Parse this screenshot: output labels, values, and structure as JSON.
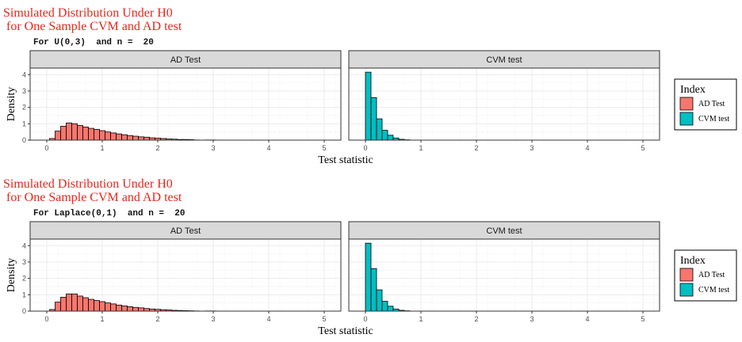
{
  "colors": {
    "ad": "#F8766D",
    "cvm": "#00BFC4",
    "strip": "#d9d9d9",
    "grid": "#ebebeb",
    "title": "#e8261c"
  },
  "chart_data": [
    {
      "type": "bar",
      "title": "Simulated Distribution Under H0",
      "title_line2": " for One Sample CVM and AD test",
      "subtitle": "For U(0,3)  and n =  20",
      "xlabel": "Test statistic",
      "ylabel": "Density",
      "xlim": [
        -0.3,
        5.3
      ],
      "ylim": [
        0,
        4.4
      ],
      "x_ticks": [
        0,
        1,
        2,
        3,
        4,
        5
      ],
      "y_ticks": [
        0,
        1,
        2,
        3,
        4
      ],
      "grid": true,
      "legend": {
        "title": "Index",
        "position": "right",
        "entries": [
          "AD Test",
          "CVM test"
        ]
      },
      "bin_width": 0.1,
      "panels": [
        {
          "strip": "AD Test",
          "series": "AD Test",
          "bin_starts": [
            0.05,
            0.15,
            0.25,
            0.35,
            0.45,
            0.55,
            0.65,
            0.75,
            0.85,
            0.95,
            1.05,
            1.15,
            1.25,
            1.35,
            1.45,
            1.55,
            1.65,
            1.75,
            1.85,
            1.95,
            2.05,
            2.15,
            2.25,
            2.35,
            2.45,
            2.55,
            2.65,
            2.75,
            2.85,
            2.95
          ],
          "values": [
            0.1,
            0.55,
            0.85,
            1.05,
            1.0,
            0.9,
            0.8,
            0.72,
            0.66,
            0.58,
            0.5,
            0.44,
            0.38,
            0.33,
            0.28,
            0.24,
            0.2,
            0.18,
            0.14,
            0.12,
            0.1,
            0.07,
            0.06,
            0.04,
            0.04,
            0.03,
            0.01,
            0,
            0.01,
            0.01
          ]
        },
        {
          "strip": "CVM test",
          "series": "CVM test",
          "bin_starts": [
            0,
            0.1,
            0.2,
            0.3,
            0.4,
            0.5,
            0.6,
            0.7
          ],
          "values": [
            4.15,
            2.6,
            1.3,
            0.6,
            0.3,
            0.13,
            0.05,
            0.02
          ]
        }
      ]
    },
    {
      "type": "bar",
      "title": "Simulated Distribution Under H0",
      "title_line2": " for One Sample CVM and AD test",
      "subtitle": "For Laplace(0,1)  and n =  20",
      "xlabel": "Test statistic",
      "ylabel": "Density",
      "xlim": [
        -0.3,
        5.3
      ],
      "ylim": [
        0,
        4.4
      ],
      "x_ticks": [
        0,
        1,
        2,
        3,
        4,
        5
      ],
      "y_ticks": [
        0,
        1,
        2,
        3,
        4
      ],
      "grid": true,
      "legend": {
        "title": "Index",
        "position": "right",
        "entries": [
          "AD Test",
          "CVM test"
        ]
      },
      "bin_width": 0.1,
      "panels": [
        {
          "strip": "AD Test",
          "series": "AD Test",
          "bin_starts": [
            0.05,
            0.15,
            0.25,
            0.35,
            0.45,
            0.55,
            0.65,
            0.75,
            0.85,
            0.95,
            1.05,
            1.15,
            1.25,
            1.35,
            1.45,
            1.55,
            1.65,
            1.75,
            1.85,
            1.95,
            2.05,
            2.15,
            2.25,
            2.35,
            2.45,
            2.55,
            2.65,
            2.75,
            2.85,
            2.95
          ],
          "values": [
            0.1,
            0.55,
            0.85,
            1.05,
            1.05,
            0.92,
            0.82,
            0.72,
            0.65,
            0.58,
            0.5,
            0.44,
            0.37,
            0.32,
            0.27,
            0.23,
            0.2,
            0.16,
            0.13,
            0.11,
            0.09,
            0.07,
            0.05,
            0.04,
            0.03,
            0.02,
            0.01,
            0,
            0.01,
            0.01
          ]
        },
        {
          "strip": "CVM test",
          "series": "CVM test",
          "bin_starts": [
            0,
            0.1,
            0.2,
            0.3,
            0.4,
            0.5,
            0.6,
            0.7
          ],
          "values": [
            4.15,
            2.6,
            1.3,
            0.6,
            0.3,
            0.13,
            0.05,
            0.02
          ]
        }
      ]
    }
  ]
}
